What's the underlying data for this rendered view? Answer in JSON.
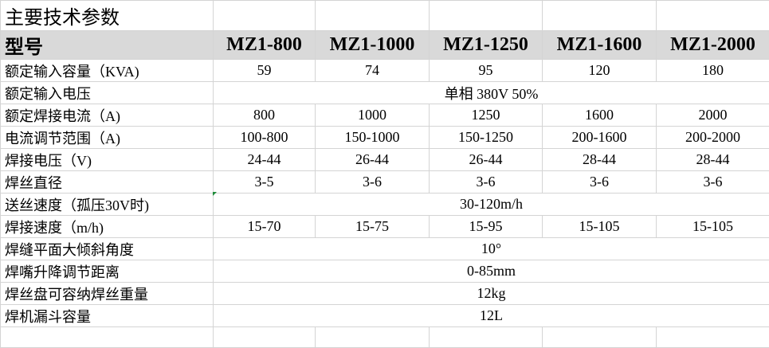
{
  "title": "主要技术参数",
  "table": {
    "header": [
      "型号",
      "MZ1-800",
      "MZ1-1000",
      "MZ1-1250",
      "MZ1-1600",
      "MZ1-2000"
    ],
    "rows": [
      [
        "额定输入容量（KVA)",
        "59",
        "74",
        "95",
        "120",
        "180"
      ],
      [
        "额定输入电压",
        "单相 380V 50%"
      ],
      [
        "额定焊接电流（A)",
        "800",
        "1000",
        "1250",
        "1600",
        "2000"
      ],
      [
        "电流调节范围（A)",
        "100-800",
        "150-1000",
        "150-1250",
        "200-1600",
        "200-2000"
      ],
      [
        "焊接电压（V)",
        "24-44",
        "26-44",
        "26-44",
        "28-44",
        "28-44"
      ],
      [
        "焊丝直径",
        "3-5",
        "3-6",
        "3-6",
        "3-6",
        "3-6"
      ],
      [
        "送丝速度（孤压30V时)",
        "30-120m/h"
      ],
      [
        "焊接速度（m/h)",
        "15-70",
        "15-75",
        "15-95",
        "15-105",
        "15-105"
      ],
      [
        "焊缝平面大倾斜角度",
        "10°"
      ],
      [
        "焊嘴升降调节距离",
        "0-85mm"
      ],
      [
        "焊丝盘可容纳焊丝重量",
        "12kg"
      ],
      [
        "焊机漏斗容量",
        "12L"
      ]
    ]
  }
}
